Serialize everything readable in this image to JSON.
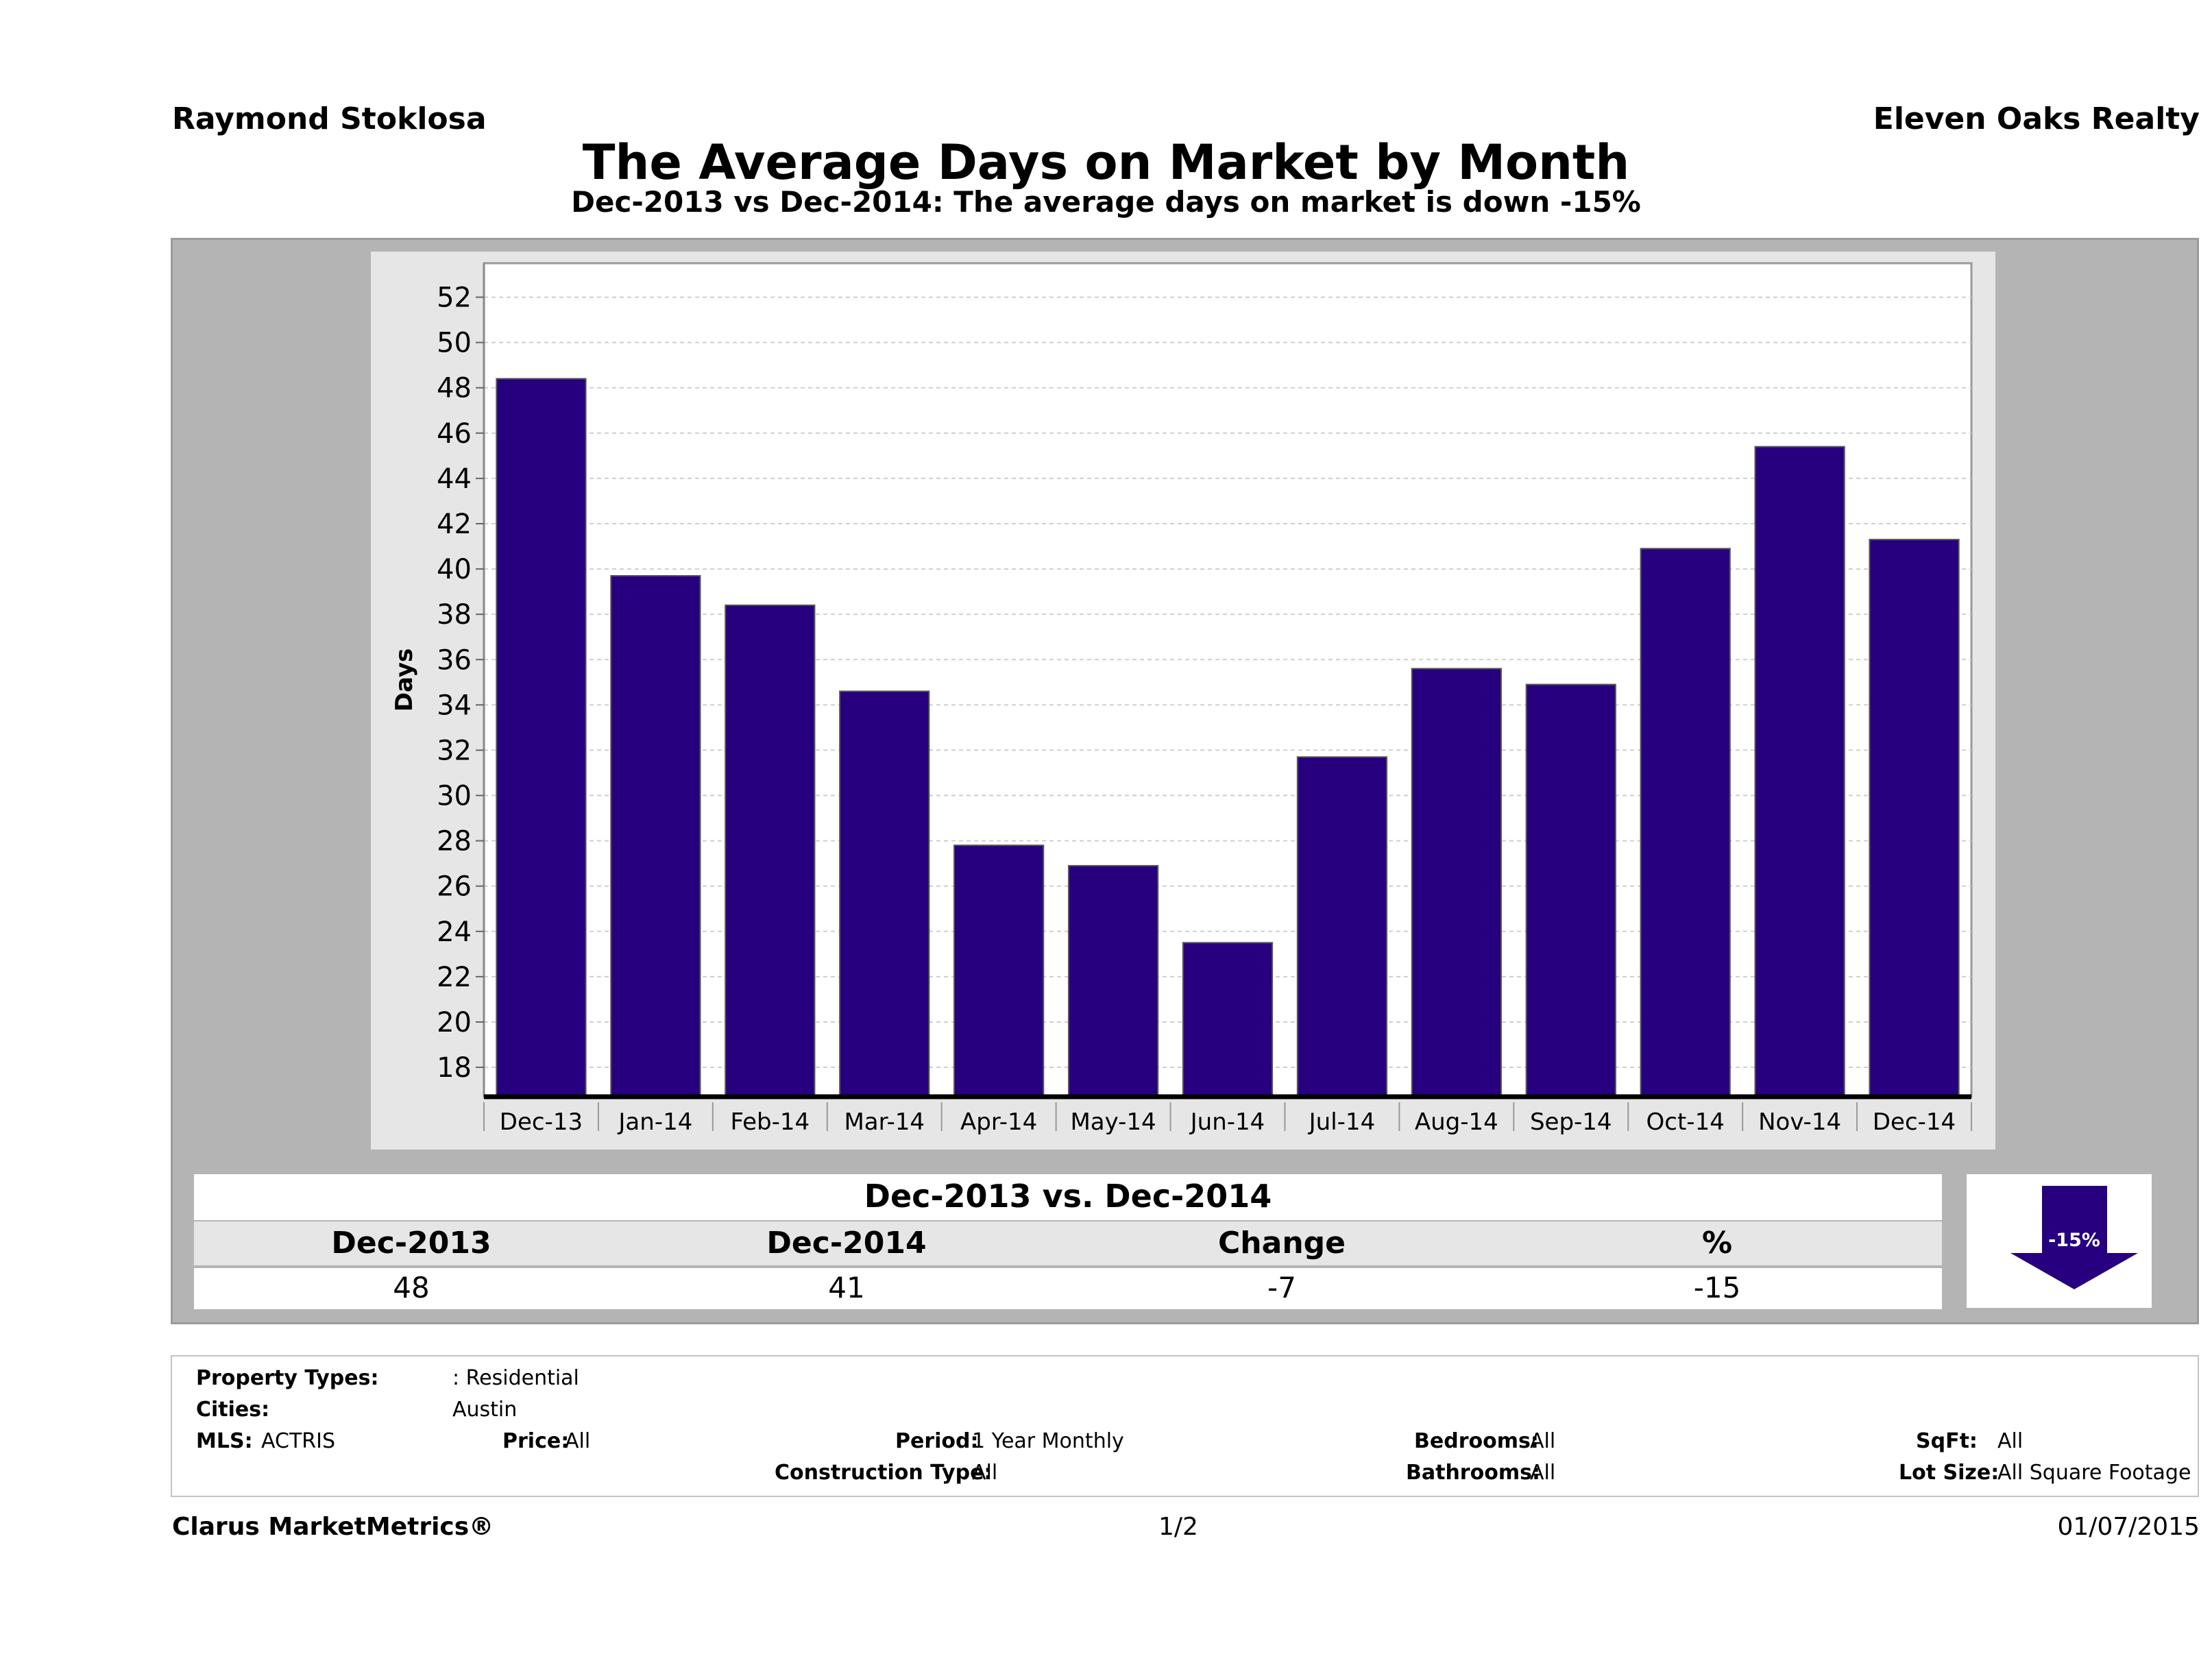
{
  "header": {
    "agent": "Raymond Stoklosa",
    "company": "Eleven Oaks Realty",
    "title": "The Average Days on Market by Month",
    "subtitle": "Dec-2013 vs Dec-2014: The average days on market is down -15%"
  },
  "chart_data": {
    "type": "bar",
    "categories": [
      "Dec-13",
      "Jan-14",
      "Feb-14",
      "Mar-14",
      "Apr-14",
      "May-14",
      "Jun-14",
      "Jul-14",
      "Aug-14",
      "Sep-14",
      "Oct-14",
      "Nov-14",
      "Dec-14"
    ],
    "values": [
      48.4,
      39.7,
      38.4,
      34.6,
      27.8,
      26.9,
      23.5,
      31.7,
      35.6,
      34.9,
      40.9,
      45.4,
      41.3
    ],
    "ylabel": "Days",
    "xlabel": "",
    "ylim": [
      16.7,
      53.5
    ],
    "yticks": [
      18,
      20,
      22,
      24,
      26,
      28,
      30,
      32,
      34,
      36,
      38,
      40,
      42,
      44,
      46,
      48,
      50,
      52
    ],
    "grid": true,
    "bar_color": "#26007f"
  },
  "summary": {
    "title": "Dec-2013 vs. Dec-2014",
    "headers": [
      "Dec-2013",
      "Dec-2014",
      "Change",
      "%"
    ],
    "values": [
      "48",
      "41",
      "-7",
      "-15"
    ],
    "badge": "-15%",
    "badge_color": "#26007f"
  },
  "info": {
    "property_types_label": "Property Types:",
    "property_types_value": ": Residential",
    "cities_label": "Cities:",
    "cities_value": "Austin",
    "mls_label": "MLS:",
    "mls_value": "ACTRIS",
    "price_label": "Price:",
    "price_value": "All",
    "period_label": "Period:",
    "period_value": "1 Year Monthly",
    "construction_label": "Construction Type:",
    "construction_value": "All",
    "bedrooms_label": "Bedrooms:",
    "bedrooms_value": "All",
    "bathrooms_label": "Bathrooms:",
    "bathrooms_value": "All",
    "sqft_label": "SqFt:",
    "sqft_value": "All",
    "lot_label": "Lot Size:",
    "lot_value": "All Square Footage"
  },
  "footer": {
    "brand": "Clarus MarketMetrics®",
    "page": "1/2",
    "date": "01/07/2015"
  }
}
